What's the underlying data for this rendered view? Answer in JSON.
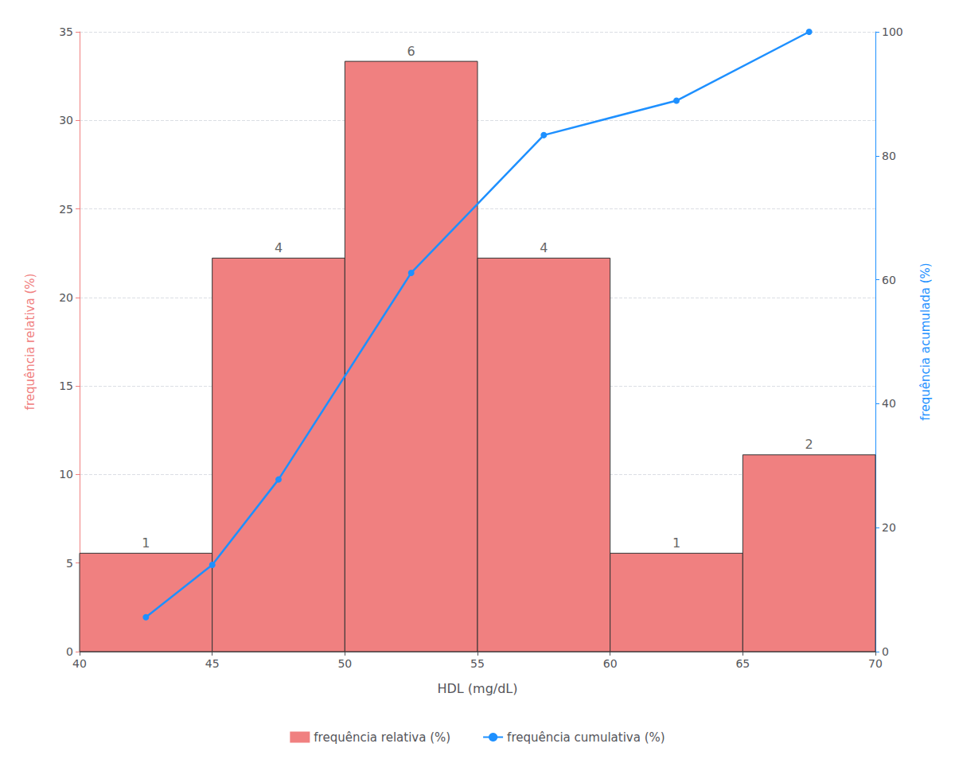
{
  "chart_data": {
    "type": "histogram",
    "xlabel": "HDL (mg/dL)",
    "ylabel": "frequência relativa (%)",
    "y2label": "frequência acumulada (%)",
    "xlim": [
      40,
      70
    ],
    "xticks": [
      40,
      45,
      50,
      55,
      60,
      65,
      70
    ],
    "ylim": [
      0,
      35
    ],
    "yticks": [
      0,
      5,
      10,
      15,
      20,
      25,
      30,
      35
    ],
    "y2lim": [
      0,
      100
    ],
    "y2ticks": [
      0,
      20,
      40,
      60,
      80,
      100
    ],
    "grid": true,
    "legend": "bottom",
    "series": [
      {
        "name": "frequência relativa (%)",
        "type": "bar",
        "color": "#F08080",
        "bins": [
          40,
          45,
          50,
          55,
          60,
          65,
          70
        ],
        "values": [
          5.556,
          22.222,
          33.333,
          22.222,
          5.556,
          11.111
        ],
        "counts": [
          1,
          4,
          6,
          4,
          1,
          2
        ]
      },
      {
        "name": "frequência cumulativa (%)",
        "type": "line",
        "axis": "y2",
        "color": "#1E90FF",
        "marker": "circle",
        "x": [
          42.5,
          45.0,
          47.5,
          52.5,
          57.5,
          62.5,
          67.5
        ],
        "values": [
          5.556,
          14.0,
          27.778,
          61.111,
          83.333,
          88.889,
          100.0
        ]
      }
    ]
  }
}
